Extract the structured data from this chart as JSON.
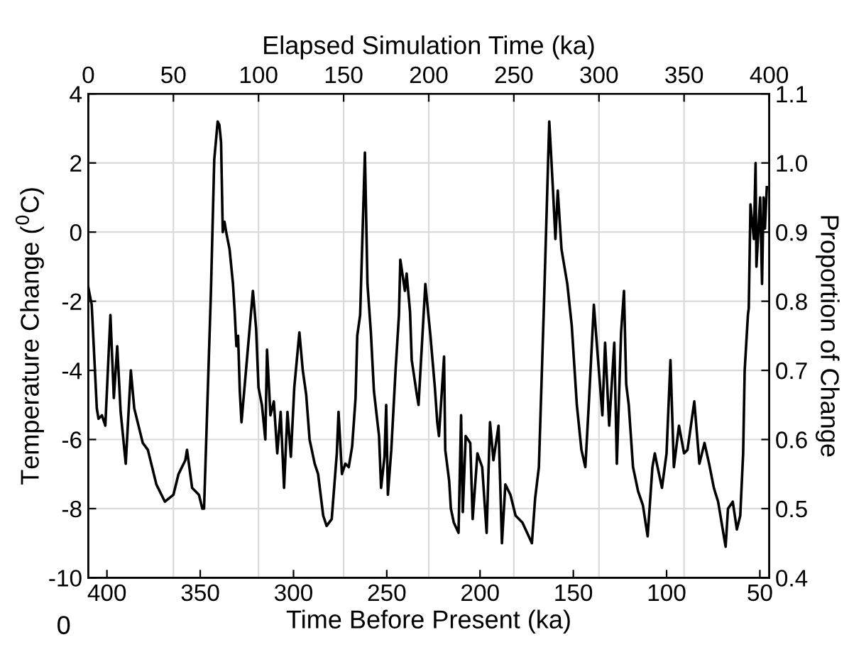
{
  "chart_data": {
    "type": "line",
    "xlabel": "Time Before Present (ka)",
    "x2label": "Elapsed Simulation Time (ka)",
    "ylabel": "Temperature Change ($^{0}$C)",
    "y2label": "Proportion of Change",
    "xlim": [
      410,
      45
    ],
    "xticks": [
      400,
      350,
      300,
      250,
      200,
      150,
      100,
      50
    ],
    "x2lim": [
      0,
      400
    ],
    "x2ticks": [
      0,
      50,
      100,
      150,
      200,
      250,
      300,
      350,
      400
    ],
    "ylim": [
      -10,
      4
    ],
    "yticks": [
      -10,
      -8,
      -6,
      -4,
      -2,
      0,
      2,
      4
    ],
    "y2lim": [
      0.4,
      1.1
    ],
    "y2ticks": [
      0.4,
      0.5,
      0.6,
      0.7,
      0.8,
      0.9,
      {
        "value": 1.0,
        "label": "1.0"
      },
      1.1
    ],
    "grid": true,
    "annotations": [
      "0"
    ],
    "series": [
      {
        "color": "#000000",
        "axis": "x2",
        "x": [
          0,
          2,
          5,
          6,
          8,
          10,
          13,
          15,
          17,
          19,
          22,
          25,
          27,
          30,
          32,
          35,
          40,
          45,
          50,
          53,
          57,
          58,
          61,
          65,
          67,
          68,
          72,
          74,
          76,
          77,
          78,
          79,
          80,
          81,
          83,
          85,
          86,
          87,
          88,
          89,
          90,
          96.7,
          98.6,
          100,
          102,
          104,
          105,
          107,
          109,
          111,
          113,
          115,
          117,
          119,
          121,
          124,
          126,
          128,
          130,
          133,
          135,
          138,
          140,
          143,
          146,
          147,
          149,
          151,
          153,
          155,
          157,
          158,
          159.7,
          162.5,
          164,
          166,
          167.8,
          170.8,
          172,
          174,
          175,
          176,
          178,
          180.5,
          182.5,
          183.3,
          186,
          187,
          189,
          190,
          193,
          194,
          198,
          201,
          203.6,
          205,
          206,
          209,
          209.7,
          212,
          213,
          214.7,
          217.5,
          219,
          220,
          221.7,
          224.4,
          225.8,
          228.6,
          231.4,
          234,
          236,
          238,
          241,
          243,
          245,
          248,
          251,
          255,
          257.8,
          260.6,
          262.5,
          264.7,
          267.5,
          270.8,
          271.7,
          273,
          274.4,
          275.8,
          278,
          281.4,
          284,
          287,
          289.7,
          292,
          294,
          296.7,
          297,
          299,
          302,
          303.6,
          306,
          309,
          310.5,
          313,
          314.7,
          316,
          317.5,
          320,
          323,
          325.8,
          328.6,
          331.4,
          332.8,
          334,
          337,
          339.7,
          342,
          344,
          347,
          350,
          352,
          356,
          359,
          362,
          364.7,
          367.5,
          370,
          374.4,
          375.8,
          378.6,
          381,
          383,
          384.7,
          385.6,
          387.5,
          388,
          389,
          391,
          392,
          392.5,
          394.7,
          395.8,
          396.7,
          397.5,
          398.6
        ],
        "values": [
          -1.6,
          -2.1,
          -5.1,
          -5.4,
          -5.3,
          -5.6,
          -2.4,
          -4.8,
          -3.3,
          -5.2,
          -6.7,
          -4.0,
          -5.1,
          -5.7,
          -6.1,
          -6.3,
          -7.3,
          -7.8,
          -7.6,
          -7.0,
          -6.6,
          -6.3,
          -7.4,
          -7.6,
          -8.0,
          -8.0,
          -1.8,
          2.1,
          3.2,
          3.1,
          2.6,
          0.0,
          0.3,
          0.0,
          -0.5,
          -1.5,
          -2.3,
          -3.3,
          -3.0,
          -4.6,
          -5.5,
          -1.7,
          -2.8,
          -4.5,
          -5.0,
          -6.0,
          -3.4,
          -5.3,
          -4.9,
          -6.4,
          -5.2,
          -7.4,
          -5.2,
          -6.5,
          -4.5,
          -2.9,
          -4.0,
          -4.7,
          -6.0,
          -6.7,
          -7.0,
          -8.2,
          -8.5,
          -8.3,
          -6.4,
          -5.2,
          -7.0,
          -6.7,
          -6.8,
          -6.2,
          -4.8,
          -3.0,
          -2.4,
          2.3,
          -1.5,
          -2.9,
          -4.6,
          -5.9,
          -7.4,
          -6.5,
          -5.0,
          -7.6,
          -6.3,
          -4.0,
          -2.4,
          -0.8,
          -1.7,
          -1.2,
          -2.3,
          -3.7,
          -4.7,
          -5.0,
          -1.5,
          -3.0,
          -4.5,
          -5.5,
          -5.9,
          -3.6,
          -6.3,
          -7.2,
          -8.0,
          -8.4,
          -8.7,
          -5.3,
          -8.1,
          -5.9,
          -6.1,
          -8.3,
          -6.4,
          -6.8,
          -8.7,
          -5.5,
          -6.6,
          -5.6,
          -9.0,
          -7.3,
          -7.6,
          -8.2,
          -8.4,
          -8.7,
          -9.0,
          -7.7,
          -6.8,
          -2.4,
          3.2,
          2.4,
          1.2,
          -0.2,
          1.2,
          -0.5,
          -1.5,
          -2.7,
          -5.0,
          -6.3,
          -6.8,
          -5.0,
          -2.4,
          -2.1,
          -3.4,
          -5.3,
          -3.2,
          -5.6,
          -3.2,
          -6.7,
          -2.9,
          -1.7,
          -4.4,
          -5.0,
          -6.8,
          -7.5,
          -7.9,
          -8.8,
          -6.8,
          -6.4,
          -6.7,
          -7.4,
          -6.4,
          -3.7,
          -6.8,
          -5.6,
          -6.4,
          -6.3,
          -4.9,
          -6.7,
          -6.1,
          -6.7,
          -7.4,
          -7.8,
          -9.1,
          -8.0,
          -7.8,
          -8.6,
          -8.2,
          -6.4,
          -4.0,
          -2.4,
          -2.2,
          0.8,
          -0.2,
          2.0,
          -1.0,
          1.0,
          -1.5,
          1.0,
          0.1,
          1.3
        ]
      }
    ]
  }
}
